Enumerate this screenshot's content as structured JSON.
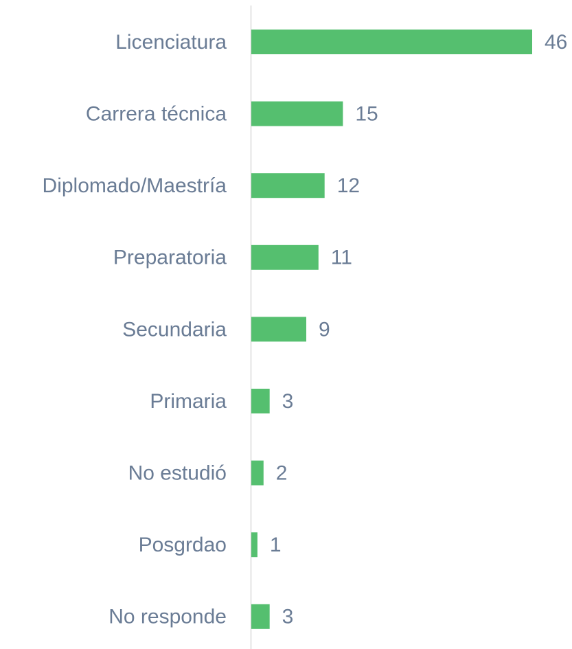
{
  "chart_data": {
    "type": "bar",
    "categories": [
      "Licenciatura",
      "Carrera técnica",
      "Diplomado/Maestría",
      "Preparatoria",
      "Secundaria",
      "Primaria",
      "No estudió",
      "Posgrdao",
      "No responde"
    ],
    "values": [
      46,
      15,
      12,
      11,
      9,
      3,
      2,
      1,
      3
    ],
    "color": "#55bf6f"
  }
}
